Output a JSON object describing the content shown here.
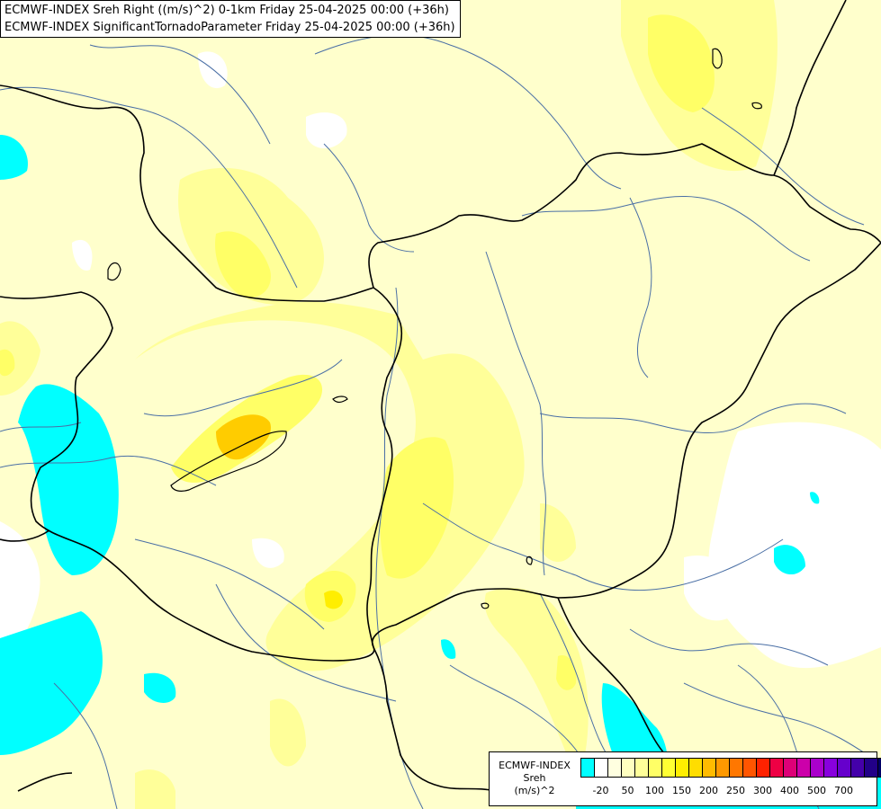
{
  "titles": [
    "ECMWF-INDEX Sreh Right ((m/s)^2) 0-1km Friday 25-04-2025 00:00 (+36h)",
    "ECMWF-INDEX SignificantTornadoParameter Friday 25-04-2025 00:00 (+36h)"
  ],
  "legend": {
    "line1": "ECMWF-INDEX",
    "line2": "Sreh",
    "line3": "(m/s)^2",
    "colors": [
      "#00ffff",
      "#ffffff",
      "#ffffe0",
      "#ffffc0",
      "#ffff99",
      "#ffff66",
      "#ffff33",
      "#ffee00",
      "#ffdd00",
      "#ffbb00",
      "#ff9900",
      "#ff7700",
      "#ff5500",
      "#ff2200",
      "#ee0044",
      "#dd0077",
      "#cc00aa",
      "#aa00cc",
      "#8800dd",
      "#6600cc",
      "#4400aa",
      "#220088",
      "#000066"
    ],
    "ticks": [
      "-20",
      "50",
      "100",
      "150",
      "200",
      "250",
      "300",
      "400",
      "500",
      "700"
    ]
  },
  "map_colors": {
    "background": "#ffffcc",
    "light_yellow": "#ffff99",
    "yellow": "#ffff66",
    "strong_yellow": "#ffee00",
    "orange": "#ffcc00",
    "cyan": "#00ffff",
    "white": "#ffffff",
    "border": "#000000",
    "river": "#4a6fa5"
  }
}
